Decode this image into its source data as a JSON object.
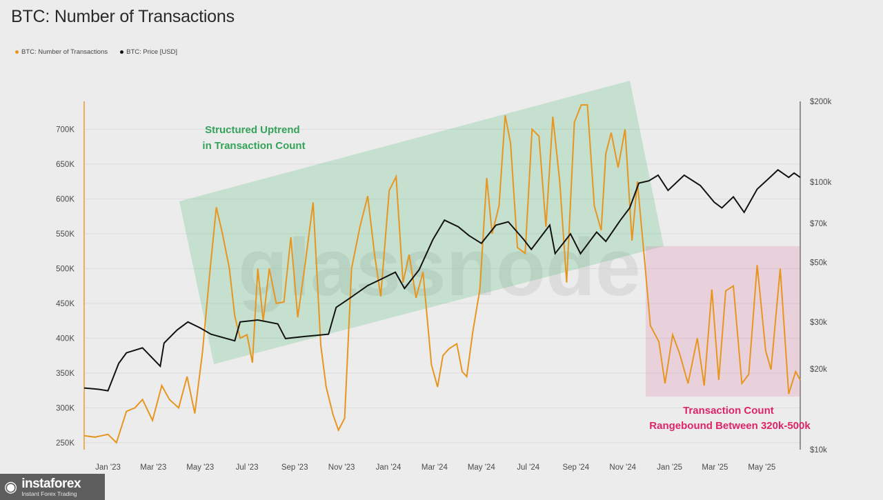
{
  "title": "BTC: Number of Transactions",
  "legend": [
    {
      "label": "BTC: Number of Transactions",
      "color": "#e8951f"
    },
    {
      "label": "BTC: Price [USD]",
      "color": "#111111"
    }
  ],
  "watermark": "glassnode",
  "logo": {
    "name": "instaforex",
    "subtitle": "Instant Forex Trading",
    "icon": "person-circle-icon"
  },
  "chart_data": {
    "type": "line",
    "title": "BTC: Number of Transactions",
    "x_ticks": [
      "Jan '23",
      "Mar '23",
      "May '23",
      "Jul '23",
      "Sep '23",
      "Nov '23",
      "Jan '24",
      "Mar '24",
      "May '24",
      "Jul '24",
      "Sep '24",
      "Nov '24",
      "Jan '25",
      "Mar '25",
      "May '25"
    ],
    "x_tick_dates": [
      "2023-01-01",
      "2023-03-01",
      "2023-05-01",
      "2023-07-01",
      "2023-09-01",
      "2023-11-01",
      "2024-01-01",
      "2024-03-01",
      "2024-05-01",
      "2024-07-01",
      "2024-09-01",
      "2024-11-01",
      "2025-01-01",
      "2025-03-01",
      "2025-05-01"
    ],
    "x_range": [
      "2022-12-01",
      "2025-06-20"
    ],
    "y_left": {
      "ticks": [
        "250K",
        "300K",
        "350K",
        "400K",
        "450K",
        "500K",
        "550K",
        "600K",
        "650K",
        "700K"
      ],
      "values": [
        250000,
        300000,
        350000,
        400000,
        450000,
        500000,
        550000,
        600000,
        650000,
        700000
      ],
      "range": [
        240000,
        740000
      ]
    },
    "y_right": {
      "scale": "log",
      "ticks": [
        "$10k",
        "$20k",
        "$30k",
        "$50k",
        "$70k",
        "$100k",
        "$200k"
      ],
      "values": [
        10000,
        20000,
        30000,
        50000,
        70000,
        100000,
        200000
      ]
    },
    "series": [
      {
        "name": "BTC: Number of Transactions",
        "axis": "left",
        "color": "#e8951f",
        "points": [
          [
            "2022-12-01",
            260000
          ],
          [
            "2022-12-15",
            258000
          ],
          [
            "2023-01-01",
            262000
          ],
          [
            "2023-01-12",
            250000
          ],
          [
            "2023-01-25",
            295000
          ],
          [
            "2023-02-05",
            300000
          ],
          [
            "2023-02-15",
            312000
          ],
          [
            "2023-02-28",
            282000
          ],
          [
            "2023-03-12",
            332000
          ],
          [
            "2023-03-22",
            312000
          ],
          [
            "2023-04-03",
            300000
          ],
          [
            "2023-04-14",
            345000
          ],
          [
            "2023-04-24",
            292000
          ],
          [
            "2023-05-04",
            380000
          ],
          [
            "2023-05-14",
            500000
          ],
          [
            "2023-05-22",
            588000
          ],
          [
            "2023-05-30",
            550000
          ],
          [
            "2023-06-08",
            500000
          ],
          [
            "2023-06-15",
            432000
          ],
          [
            "2023-06-22",
            400000
          ],
          [
            "2023-07-01",
            405000
          ],
          [
            "2023-07-08",
            365000
          ],
          [
            "2023-07-15",
            500000
          ],
          [
            "2023-07-22",
            425000
          ],
          [
            "2023-07-30",
            500000
          ],
          [
            "2023-08-08",
            450000
          ],
          [
            "2023-08-18",
            452000
          ],
          [
            "2023-08-27",
            545000
          ],
          [
            "2023-09-05",
            430000
          ],
          [
            "2023-09-15",
            510000
          ],
          [
            "2023-09-25",
            595000
          ],
          [
            "2023-10-05",
            390000
          ],
          [
            "2023-10-12",
            330000
          ],
          [
            "2023-10-21",
            290000
          ],
          [
            "2023-10-28",
            268000
          ],
          [
            "2023-11-05",
            285000
          ],
          [
            "2023-11-14",
            500000
          ],
          [
            "2023-11-25",
            560000
          ],
          [
            "2023-12-05",
            604000
          ],
          [
            "2023-12-14",
            520000
          ],
          [
            "2023-12-22",
            460000
          ],
          [
            "2024-01-02",
            612000
          ],
          [
            "2024-01-11",
            632000
          ],
          [
            "2024-01-20",
            480000
          ],
          [
            "2024-01-28",
            520000
          ],
          [
            "2024-02-06",
            458000
          ],
          [
            "2024-02-15",
            495000
          ],
          [
            "2024-02-26",
            362000
          ],
          [
            "2024-03-05",
            330000
          ],
          [
            "2024-03-12",
            375000
          ],
          [
            "2024-03-20",
            385000
          ],
          [
            "2024-03-30",
            392000
          ],
          [
            "2024-04-06",
            352000
          ],
          [
            "2024-04-12",
            345000
          ],
          [
            "2024-04-20",
            410000
          ],
          [
            "2024-04-29",
            470000
          ],
          [
            "2024-05-08",
            630000
          ],
          [
            "2024-05-15",
            550000
          ],
          [
            "2024-05-24",
            590000
          ],
          [
            "2024-06-01",
            720000
          ],
          [
            "2024-06-08",
            680000
          ],
          [
            "2024-06-17",
            530000
          ],
          [
            "2024-06-27",
            522000
          ],
          [
            "2024-07-06",
            700000
          ],
          [
            "2024-07-15",
            690000
          ],
          [
            "2024-07-24",
            560000
          ],
          [
            "2024-08-02",
            718000
          ],
          [
            "2024-08-11",
            625000
          ],
          [
            "2024-08-20",
            480000
          ],
          [
            "2024-08-30",
            710000
          ],
          [
            "2024-09-08",
            735000
          ],
          [
            "2024-09-16",
            735000
          ],
          [
            "2024-09-25",
            590000
          ],
          [
            "2024-10-04",
            555000
          ],
          [
            "2024-10-10",
            665000
          ],
          [
            "2024-10-17",
            695000
          ],
          [
            "2024-10-26",
            645000
          ],
          [
            "2024-11-04",
            700000
          ],
          [
            "2024-11-13",
            540000
          ],
          [
            "2024-11-20",
            625000
          ],
          [
            "2024-11-30",
            505000
          ],
          [
            "2024-12-07",
            418000
          ],
          [
            "2024-12-18",
            395000
          ],
          [
            "2024-12-26",
            335000
          ],
          [
            "2025-01-05",
            405000
          ],
          [
            "2025-01-14",
            378000
          ],
          [
            "2025-01-25",
            335000
          ],
          [
            "2025-02-06",
            400000
          ],
          [
            "2025-02-15",
            332000
          ],
          [
            "2025-02-25",
            470000
          ],
          [
            "2025-03-06",
            340000
          ],
          [
            "2025-03-15",
            468000
          ],
          [
            "2025-03-25",
            475000
          ],
          [
            "2025-04-05",
            335000
          ],
          [
            "2025-04-14",
            348000
          ],
          [
            "2025-04-25",
            505000
          ],
          [
            "2025-05-06",
            382000
          ],
          [
            "2025-05-13",
            355000
          ],
          [
            "2025-05-25",
            500000
          ],
          [
            "2025-06-05",
            320000
          ],
          [
            "2025-06-14",
            352000
          ],
          [
            "2025-06-20",
            340000
          ]
        ]
      },
      {
        "name": "BTC: Price [USD]",
        "axis": "right",
        "color": "#111111",
        "points": [
          [
            "2022-12-01",
            17000
          ],
          [
            "2022-12-20",
            16800
          ],
          [
            "2023-01-01",
            16600
          ],
          [
            "2023-01-15",
            21000
          ],
          [
            "2023-01-25",
            23000
          ],
          [
            "2023-02-15",
            24000
          ],
          [
            "2023-03-10",
            20500
          ],
          [
            "2023-03-15",
            25000
          ],
          [
            "2023-04-01",
            28000
          ],
          [
            "2023-04-15",
            30000
          ],
          [
            "2023-05-01",
            28500
          ],
          [
            "2023-05-15",
            27000
          ],
          [
            "2023-06-15",
            25500
          ],
          [
            "2023-06-22",
            30000
          ],
          [
            "2023-07-15",
            30500
          ],
          [
            "2023-08-10",
            29500
          ],
          [
            "2023-08-20",
            26000
          ],
          [
            "2023-09-15",
            26500
          ],
          [
            "2023-10-15",
            27000
          ],
          [
            "2023-10-25",
            34000
          ],
          [
            "2023-11-10",
            36500
          ],
          [
            "2023-12-05",
            41000
          ],
          [
            "2023-12-20",
            43000
          ],
          [
            "2024-01-10",
            46000
          ],
          [
            "2024-01-22",
            40000
          ],
          [
            "2024-02-10",
            47000
          ],
          [
            "2024-02-28",
            61000
          ],
          [
            "2024-03-14",
            72000
          ],
          [
            "2024-04-01",
            68000
          ],
          [
            "2024-04-15",
            63000
          ],
          [
            "2024-05-01",
            59000
          ],
          [
            "2024-05-20",
            69000
          ],
          [
            "2024-06-05",
            71000
          ],
          [
            "2024-06-25",
            61000
          ],
          [
            "2024-07-05",
            56000
          ],
          [
            "2024-07-29",
            69000
          ],
          [
            "2024-08-05",
            54000
          ],
          [
            "2024-08-25",
            64000
          ],
          [
            "2024-09-07",
            54000
          ],
          [
            "2024-09-28",
            65000
          ],
          [
            "2024-10-10",
            60000
          ],
          [
            "2024-10-29",
            72000
          ],
          [
            "2024-11-10",
            80000
          ],
          [
            "2024-11-22",
            99000
          ],
          [
            "2024-12-05",
            101000
          ],
          [
            "2024-12-17",
            106000
          ],
          [
            "2024-12-30",
            93000
          ],
          [
            "2025-01-20",
            106000
          ],
          [
            "2025-02-10",
            97000
          ],
          [
            "2025-02-28",
            84000
          ],
          [
            "2025-03-10",
            80000
          ],
          [
            "2025-03-25",
            88000
          ],
          [
            "2025-04-08",
            77000
          ],
          [
            "2025-04-25",
            94000
          ],
          [
            "2025-05-10",
            103000
          ],
          [
            "2025-05-22",
            111000
          ],
          [
            "2025-06-05",
            104000
          ],
          [
            "2025-06-12",
            108000
          ],
          [
            "2025-06-20",
            104000
          ]
        ]
      }
    ],
    "annotations": [
      {
        "text": [
          "Structured Uptrend",
          "in Transaction Count"
        ],
        "color": "#33a35a"
      },
      {
        "text": [
          "Transaction Count",
          "Rangebound Between 320k-500k"
        ],
        "color": "#dc2467"
      }
    ],
    "grid": true,
    "legend_position": "top-left"
  }
}
